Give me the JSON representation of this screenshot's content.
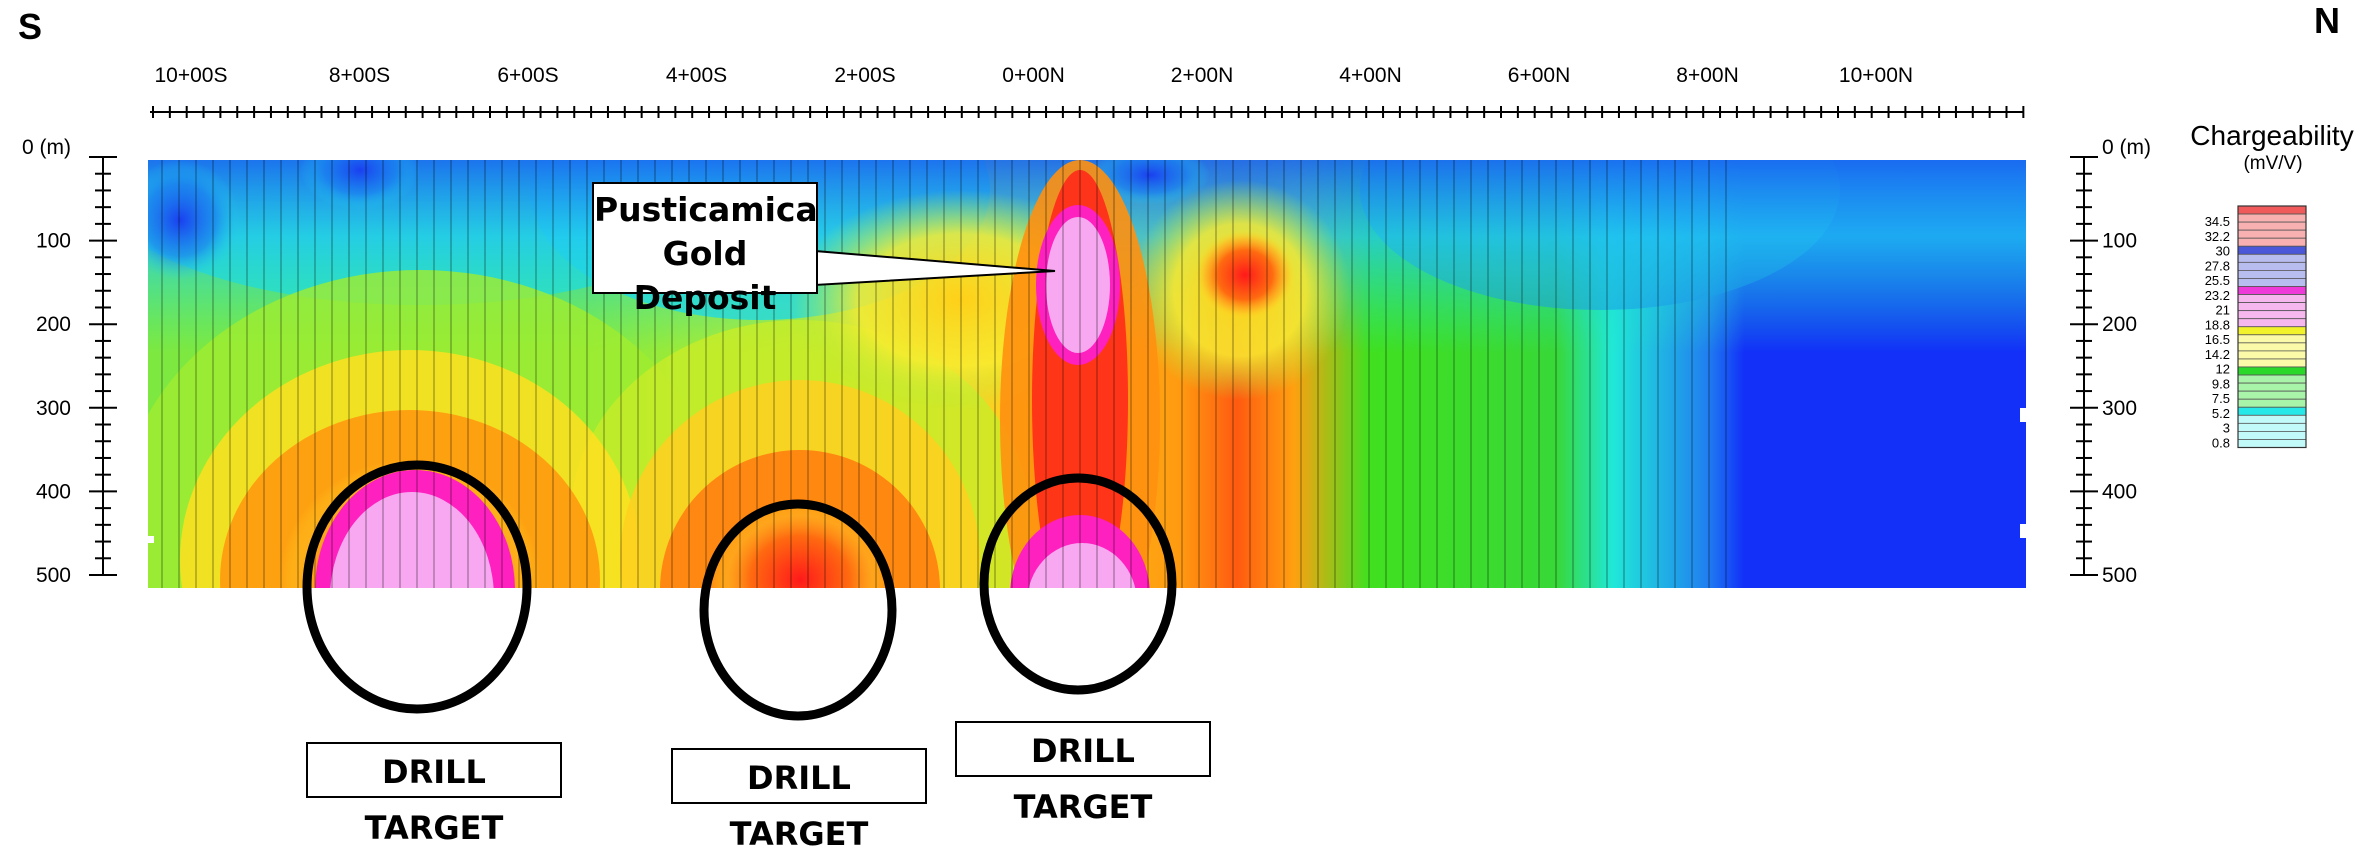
{
  "compass": {
    "south": "S",
    "north": "N"
  },
  "stations": [
    "10+00S",
    "8+00S",
    "6+00S",
    "4+00S",
    "2+00S",
    "0+00N",
    "2+00N",
    "4+00N",
    "6+00N",
    "8+00N",
    "10+00N"
  ],
  "depth_labels_left": [
    "0 (m)",
    "100",
    "200",
    "300",
    "400",
    "500"
  ],
  "depth_labels_right": [
    "0 (m)",
    "100",
    "200",
    "300",
    "400",
    "500"
  ],
  "callout": {
    "line1": "Pusticamica",
    "line2": "Gold Deposit"
  },
  "drill_targets": [
    "DRILL TARGET",
    "DRILL TARGET",
    "DRILL TARGET"
  ],
  "legend": {
    "title": "Chargeability",
    "units": "(mV/V)",
    "labels": [
      "34.5",
      "32.2",
      "30",
      "27.8",
      "25.5",
      "23.2",
      "21",
      "18.8",
      "16.5",
      "14.2",
      "12",
      "9.8",
      "7.5",
      "5.2",
      "3",
      "0.8"
    ],
    "groups": [
      {
        "color": "#f05a5a",
        "light": "#f8b0b0"
      },
      {
        "color": "#4a57d8",
        "light": "#b8bdf0"
      },
      {
        "color": "#ee3ad8",
        "light": "#f6b6ee"
      },
      {
        "color": "#f2f22a",
        "light": "#fafaa8"
      },
      {
        "color": "#2ad82a",
        "light": "#a8f4a8"
      },
      {
        "color": "#26e8e8",
        "light": "#c2fafa"
      }
    ]
  }
}
